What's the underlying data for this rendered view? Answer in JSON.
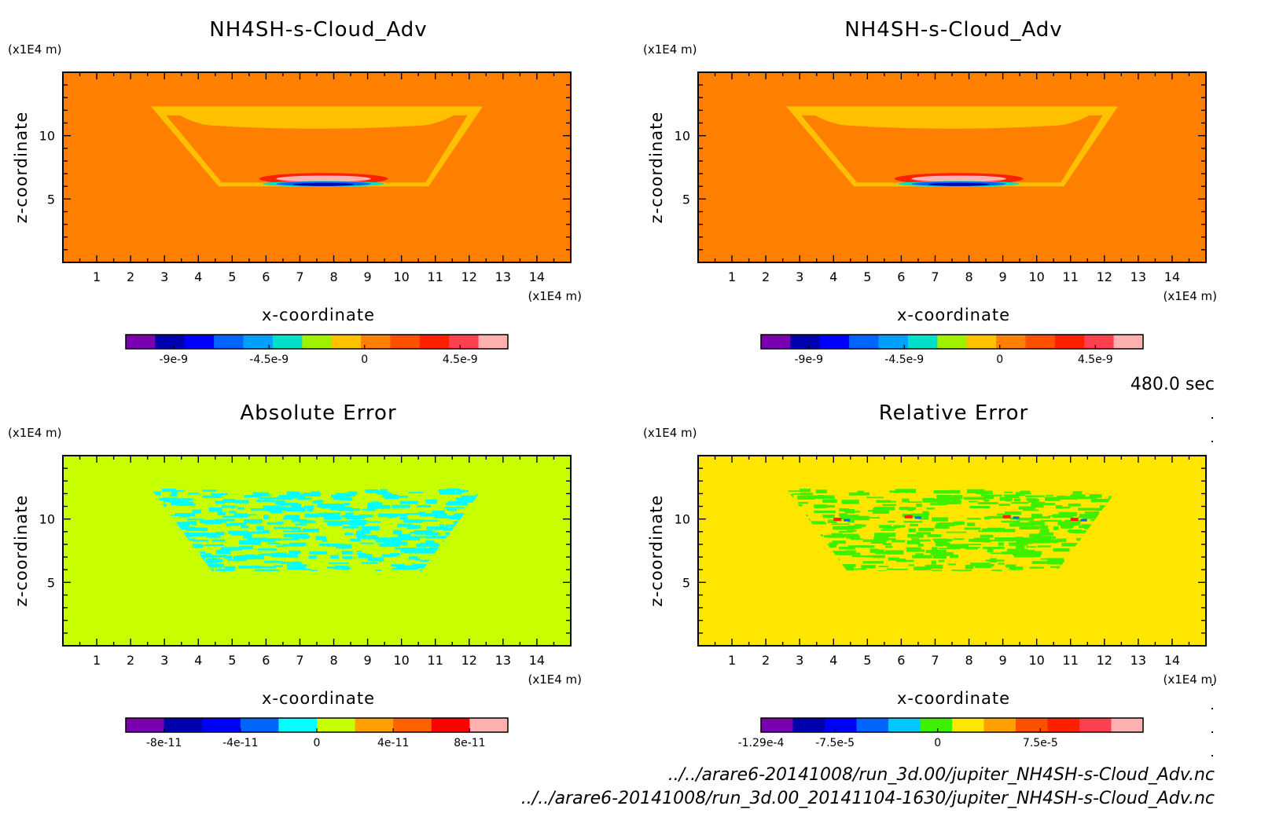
{
  "timestamp": "480.0 sec",
  "footer": {
    "file1": "../../arare6-20141008/run_3d.00/jupiter_NH4SH-s-Cloud_Adv.nc",
    "file2": "../../arare6-20141008/run_3d.00_20141104-1630/jupiter_NH4SH-s-Cloud_Adv.nc"
  },
  "chart_data": [
    {
      "type": "heatmap",
      "title": "NH4SH-s-Cloud_Adv",
      "xlabel": "x-coordinate",
      "ylabel": "z-coordinate",
      "x_unit": "(x1E4 m)",
      "y_unit": "(x1E4 m)",
      "xlim": [
        0,
        15
      ],
      "ylim": [
        0,
        15
      ],
      "x_ticks": [
        1,
        2,
        3,
        4,
        5,
        6,
        7,
        8,
        9,
        10,
        11,
        12,
        13,
        14
      ],
      "y_ticks": [
        5,
        10
      ],
      "background_color": "#ff8000",
      "colorbar": {
        "colors": [
          "#7a00b0",
          "#0000b0",
          "#0000ff",
          "#0064ff",
          "#00a0ff",
          "#00e0c8",
          "#a0f000",
          "#ffc000",
          "#ff8000",
          "#ff5000",
          "#ff2000",
          "#ff4050",
          "#ffb0b0"
        ],
        "tick_labels": [
          "-9e-9",
          "-4.5e-9",
          "0",
          "4.5e-9"
        ],
        "tick_values": [
          -9e-09,
          -4.5e-09,
          0,
          4.5e-09
        ],
        "range": [
          -1.125e-08,
          6.75e-09
        ]
      }
    },
    {
      "type": "heatmap",
      "title": "NH4SH-s-Cloud_Adv",
      "xlabel": "x-coordinate",
      "ylabel": "z-coordinate",
      "x_unit": "(x1E4 m)",
      "y_unit": "(x1E4 m)",
      "xlim": [
        0,
        15
      ],
      "ylim": [
        0,
        15
      ],
      "x_ticks": [
        1,
        2,
        3,
        4,
        5,
        6,
        7,
        8,
        9,
        10,
        11,
        12,
        13,
        14
      ],
      "y_ticks": [
        5,
        10
      ],
      "background_color": "#ff8000",
      "colorbar": {
        "colors": [
          "#7a00b0",
          "#0000b0",
          "#0000ff",
          "#0064ff",
          "#00a0ff",
          "#00e0c8",
          "#a0f000",
          "#ffc000",
          "#ff8000",
          "#ff5000",
          "#ff2000",
          "#ff4050",
          "#ffb0b0"
        ],
        "tick_labels": [
          "-9e-9",
          "-4.5e-9",
          "0",
          "4.5e-9"
        ],
        "tick_values": [
          -9e-09,
          -4.5e-09,
          0,
          4.5e-09
        ],
        "range": [
          -1.125e-08,
          6.75e-09
        ]
      }
    },
    {
      "type": "heatmap",
      "title": "Absolute Error",
      "xlabel": "x-coordinate",
      "ylabel": "z-coordinate",
      "x_unit": "(x1E4 m)",
      "y_unit": "(x1E4 m)",
      "xlim": [
        0,
        15
      ],
      "ylim": [
        0,
        15
      ],
      "x_ticks": [
        1,
        2,
        3,
        4,
        5,
        6,
        7,
        8,
        9,
        10,
        11,
        12,
        13,
        14
      ],
      "y_ticks": [
        5,
        10
      ],
      "background_color": "#c8ff00",
      "colorbar": {
        "colors": [
          "#7a00b0",
          "#0000b0",
          "#0000ff",
          "#0064ff",
          "#00ffff",
          "#c8ff00",
          "#ffa000",
          "#ff6000",
          "#ff0000",
          "#ffb0b0"
        ],
        "tick_labels": [
          "-8e-11",
          "-4e-11",
          "0",
          "4e-11",
          "8e-11"
        ],
        "tick_values": [
          -8e-11,
          -4e-11,
          0,
          4e-11,
          8e-11
        ],
        "range": [
          -1e-10,
          1e-10
        ]
      }
    },
    {
      "type": "heatmap",
      "title": "Relative Error",
      "xlabel": "x-coordinate",
      "ylabel": "z-coordinate",
      "x_unit": "(x1E4 m)",
      "y_unit": "(x1E4 m)",
      "xlim": [
        0,
        15
      ],
      "ylim": [
        0,
        15
      ],
      "x_ticks": [
        1,
        2,
        3,
        4,
        5,
        6,
        7,
        8,
        9,
        10,
        11,
        12,
        13,
        14
      ],
      "y_ticks": [
        5,
        10
      ],
      "background_color": "#ffe600",
      "colorbar": {
        "colors": [
          "#7a00b0",
          "#0000b0",
          "#0000ff",
          "#0064ff",
          "#00c8ff",
          "#3cf000",
          "#ffe600",
          "#ffa000",
          "#ff5000",
          "#ff2000",
          "#ff4050",
          "#ffb0b0"
        ],
        "tick_labels": [
          "-1.29e-4",
          "-7.5e-5",
          "0",
          "7.5e-5"
        ],
        "tick_values": [
          -0.000129,
          -7.5e-05,
          0,
          7.5e-05
        ],
        "range": [
          -0.000129,
          0.00015
        ]
      }
    }
  ]
}
